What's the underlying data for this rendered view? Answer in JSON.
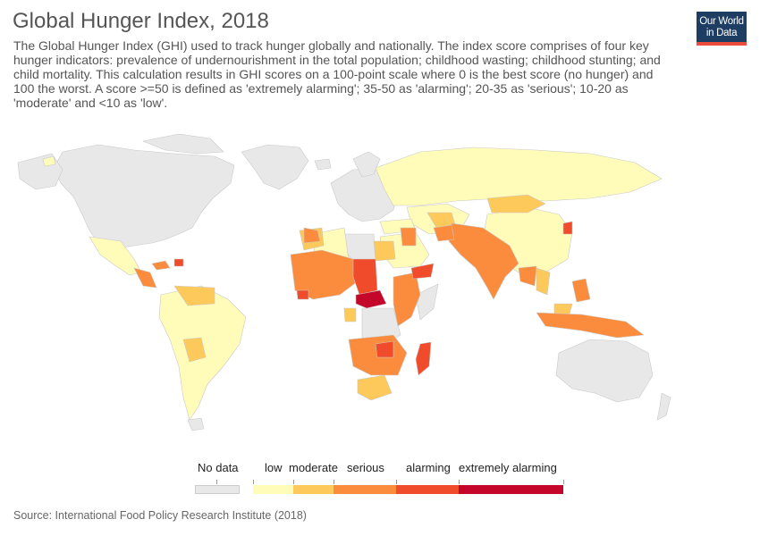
{
  "header": {
    "title": "Global Hunger Index, 2018",
    "subtitle": "The Global Hunger Index (GHI) used to track hunger globally and nationally. The index score comprises of four key hunger indicators: prevalence of undernourishment in the total population; childhood wasting; childhood stunting; and child mortality. This calculation results in GHI scores on a 100-point scale where 0 is the best score (no hunger) and 100 the worst. A score >=50 is defined as 'extremely alarming'; 35-50 as 'alarming'; 20-35 as 'serious'; 10-20 as 'moderate' and <10 as 'low'."
  },
  "logo": {
    "line1": "Our World",
    "line2": "in Data"
  },
  "legend": {
    "items": [
      {
        "label": "No data",
        "color": "#e8e8e8"
      },
      {
        "label": "low",
        "color": "#fffbb8"
      },
      {
        "label": "moderate",
        "color": "#fdc95a"
      },
      {
        "label": "serious",
        "color": "#fb8c3d"
      },
      {
        "label": "alarming",
        "color": "#f04b2a"
      },
      {
        "label": "extremely alarming",
        "color": "#c4062a"
      }
    ]
  },
  "colors": {
    "no_data": "#e8e8e8",
    "low": "#fffbb8",
    "moderate": "#fdc95a",
    "serious": "#fb8c3d",
    "alarming": "#f04b2a",
    "extremely_alarming": "#c4062a",
    "border": "#c9c9c9"
  },
  "source": "Source: International Food Policy Research Institute (2018)"
}
